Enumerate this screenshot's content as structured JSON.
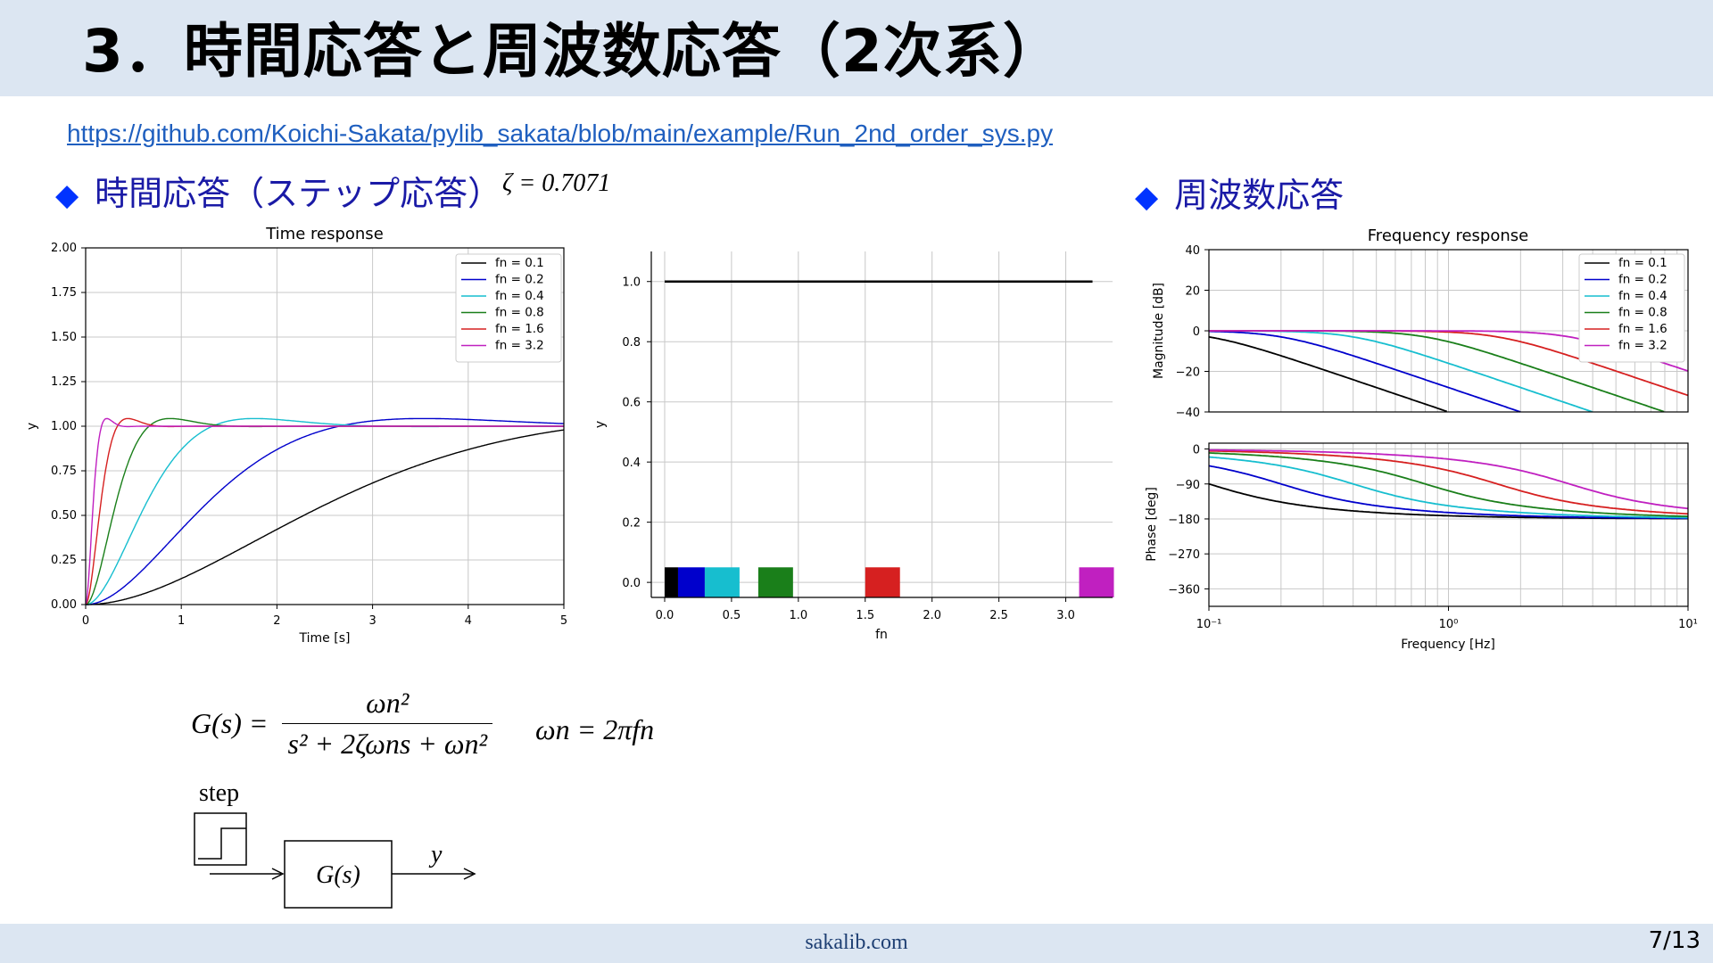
{
  "slide": {
    "title": "3．時間応答と周波数応答（2次系）",
    "source_url": "https://github.com/Koichi-Sakata/pylib_sakata/blob/main/example/Run_2nd_order_sys.py",
    "heading_time": "時間応答（ステップ応答）",
    "zeta_label": "ζ = 0.7071",
    "heading_freq": "周波数応答",
    "bullet_symbol": "◆",
    "footer_site": "sakalib.com",
    "page_number": "7/13"
  },
  "formulas": {
    "tf_lhs": "G(s) =",
    "tf_numerator": "ωn²",
    "tf_denominator": "s² + 2ζωns + ωn²",
    "omega": "ωn = 2πfn"
  },
  "block_diagram": {
    "input_label": "step",
    "block_label": "G(s)",
    "output_label": "y"
  },
  "legend": {
    "entries": [
      "fn = 0.1",
      "fn = 0.2",
      "fn = 0.4",
      "fn = 0.8",
      "fn = 1.6",
      "fn = 3.2"
    ],
    "colors": [
      "#000000",
      "#0000cc",
      "#17becf",
      "#1a7f1a",
      "#d62020",
      "#c020c0"
    ]
  },
  "chart_data": [
    {
      "id": "time_response",
      "type": "line",
      "title": "Time response",
      "xlabel": "Time [s]",
      "ylabel": "y",
      "xlim": [
        0,
        5
      ],
      "ylim": [
        0,
        2
      ],
      "xticks": [
        "0",
        "1",
        "2",
        "3",
        "4",
        "5"
      ],
      "yticks": [
        "0.00",
        "0.25",
        "0.50",
        "0.75",
        "1.00",
        "1.25",
        "1.50",
        "1.75",
        "2.00"
      ],
      "grid": true,
      "legend_position": "top-right",
      "zeta": 0.7071,
      "series": [
        {
          "name": "fn = 0.1",
          "fn": 0.1
        },
        {
          "name": "fn = 0.2",
          "fn": 0.2
        },
        {
          "name": "fn = 0.4",
          "fn": 0.4
        },
        {
          "name": "fn = 0.8",
          "fn": 0.8
        },
        {
          "name": "fn = 1.6",
          "fn": 1.6
        },
        {
          "name": "fn = 3.2",
          "fn": 3.2
        }
      ]
    },
    {
      "id": "fn_bar",
      "type": "bar",
      "title": "",
      "xlabel": "fn",
      "ylabel": "y",
      "xlim": [
        -0.1,
        3.35
      ],
      "ylim": [
        -0.05,
        1.1
      ],
      "xticks": [
        "0.0",
        "0.5",
        "1.0",
        "1.5",
        "2.0",
        "2.5",
        "3.0"
      ],
      "yticks": [
        "0.0",
        "0.2",
        "0.4",
        "0.6",
        "0.8",
        "1.0"
      ],
      "grid": true,
      "line": {
        "x": [
          0.0,
          3.2
        ],
        "y": 1.0
      },
      "bars": [
        {
          "x": 0.0,
          "width": 0.1,
          "height": 0.05
        },
        {
          "x": 0.1,
          "width": 0.2,
          "height": 0.05
        },
        {
          "x": 0.3,
          "width": 0.26,
          "height": 0.05
        },
        {
          "x": 0.7,
          "width": 0.26,
          "height": 0.05
        },
        {
          "x": 1.5,
          "width": 0.26,
          "height": 0.05
        },
        {
          "x": 3.1,
          "width": 0.26,
          "height": 0.05
        }
      ]
    },
    {
      "id": "frequency_response",
      "type": "line",
      "title": "Frequency response",
      "xlabel": "Frequency [Hz]",
      "ylabel_magnitude": "Magnitude [dB]",
      "ylabel_phase": "Phase [deg]",
      "xscale": "log",
      "xlim": [
        0.1,
        10
      ],
      "xticks": [
        "10⁻¹",
        "10⁰",
        "10¹"
      ],
      "mag_ylim": [
        -40,
        40
      ],
      "mag_yticks": [
        "40",
        "20",
        "0",
        "−20",
        "−40"
      ],
      "phase_ylim": [
        -405,
        15
      ],
      "phase_yticks": [
        "0",
        "−90",
        "−180",
        "−270",
        "−360"
      ],
      "grid": true,
      "legend_position": "top-right",
      "zeta": 0.7071,
      "series": [
        {
          "name": "fn = 0.1",
          "fn": 0.1
        },
        {
          "name": "fn = 0.2",
          "fn": 0.2
        },
        {
          "name": "fn = 0.4",
          "fn": 0.4
        },
        {
          "name": "fn = 0.8",
          "fn": 0.8
        },
        {
          "name": "fn = 1.6",
          "fn": 1.6
        },
        {
          "name": "fn = 3.2",
          "fn": 3.2
        }
      ]
    }
  ]
}
